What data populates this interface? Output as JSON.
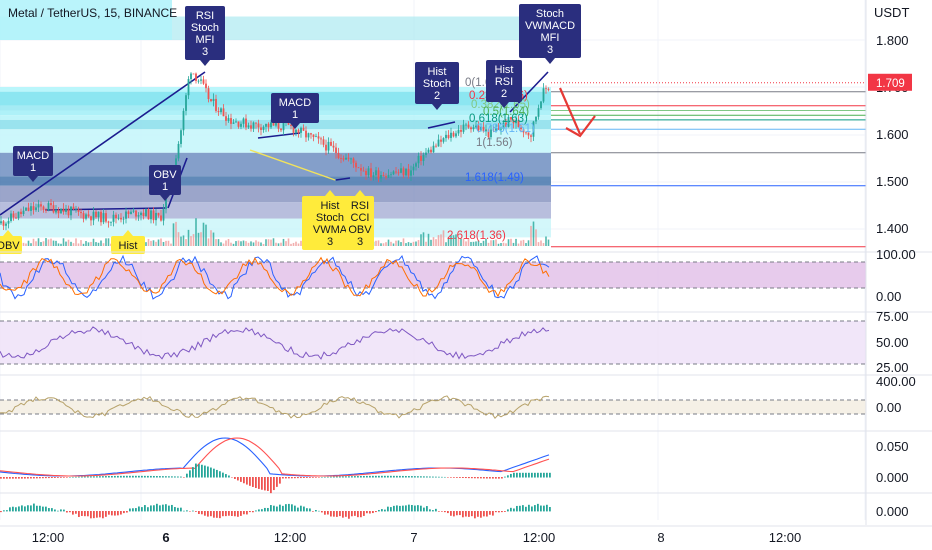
{
  "header": {
    "title": "Metal / TetherUS, 15, BINANCE"
  },
  "colors": {
    "grid": "#f0f3fa",
    "axis_text": "#131722",
    "up": "#26a69a",
    "down": "#ef5350",
    "trend": "#1c1c8f",
    "signal_buy": "#2a2e7e",
    "signal_sell": "#ffeb3b",
    "price_tag": "#f23645",
    "arrow": "#e53935"
  },
  "price_axis": {
    "unit": "USDT",
    "ticks": [
      "1.800",
      "1.700",
      "1.600",
      "1.500",
      "1.400"
    ],
    "current_price": "1.709"
  },
  "time_axis": {
    "labels": [
      "12:00",
      "6",
      "12:00",
      "7",
      "12:00",
      "8",
      "12:00"
    ],
    "bold": [
      false,
      true,
      false,
      false,
      false,
      false,
      false
    ]
  },
  "panes": {
    "stoch_ticks": [
      "100.00",
      "0.00"
    ],
    "rsi_ticks": [
      "75.00",
      "50.00",
      "25.00"
    ],
    "cci_ticks": [
      "400.00",
      "0.00"
    ],
    "macd_ticks": [
      "0.050",
      "0.000"
    ],
    "hist_ticks": [
      "0.000"
    ]
  },
  "fib_labels": [
    {
      "text": "0(1.69)",
      "color": "#787b86"
    },
    {
      "text": "0.236(1.66)",
      "color": "#f23645"
    },
    {
      "text": "0.382(1.65)",
      "color": "#81c784"
    },
    {
      "text": "0.5(1.64)",
      "color": "#4caf50"
    },
    {
      "text": "0.618(1.63)",
      "color": "#089981"
    },
    {
      "text": "0.786(1.61)",
      "color": "#64b5f6"
    },
    {
      "text": "1(1.56)",
      "color": "#787b86"
    },
    {
      "text": "1.618(1.49)",
      "color": "#2962ff"
    },
    {
      "text": "2.618(1.36)",
      "color": "#f23645"
    }
  ],
  "signals": {
    "buy": [
      {
        "lines": [
          "RSI",
          "Stoch",
          "MFI",
          "3"
        ]
      },
      {
        "lines": [
          "MACD",
          "1"
        ]
      },
      {
        "lines": [
          "OBV",
          "1"
        ]
      },
      {
        "lines": [
          "MACD",
          "1"
        ]
      },
      {
        "lines": [
          "Hist",
          "Stoch",
          "2"
        ]
      },
      {
        "lines": [
          "Hist",
          "RSI",
          "2"
        ]
      },
      {
        "lines": [
          "Stoch",
          "VWMACD",
          "MFI",
          "3"
        ]
      }
    ],
    "sell": [
      {
        "lines": [
          "OBV"
        ]
      },
      {
        "lines": [
          "Hist"
        ]
      },
      {
        "lines": [
          "Hist",
          "Stoch",
          "VWMA",
          "3"
        ]
      },
      {
        "lines": [
          "RSI",
          "CCI",
          "OBV",
          "3"
        ]
      }
    ]
  },
  "chart_data": {
    "type": "candlestick",
    "title": "Metal / TetherUS, 15, BINANCE",
    "y_unit": "USDT",
    "ylim": [
      1.36,
      1.85
    ],
    "time_range": [
      "5 12:00",
      "8 14:00"
    ],
    "current_price": 1.709,
    "price_path": [
      [
        "5 07:00",
        1.41
      ],
      [
        "5 10:00",
        1.44
      ],
      [
        "5 12:00",
        1.445
      ],
      [
        "5 15:00",
        1.43
      ],
      [
        "5 18:00",
        1.42
      ],
      [
        "5 21:00",
        1.435
      ],
      [
        "5 23:00",
        1.42
      ],
      [
        "6 00:00",
        1.5
      ],
      [
        "6 01:00",
        1.6
      ],
      [
        "6 02:00",
        1.74
      ],
      [
        "6 03:00",
        1.71
      ],
      [
        "6 04:00",
        1.67
      ],
      [
        "6 06:00",
        1.63
      ],
      [
        "6 08:00",
        1.62
      ],
      [
        "6 12:00",
        1.615
      ],
      [
        "6 16:00",
        1.57
      ],
      [
        "6 20:00",
        1.515
      ],
      [
        "7 00:00",
        1.52
      ],
      [
        "7 01:00",
        1.55
      ],
      [
        "7 04:00",
        1.6
      ],
      [
        "7 06:00",
        1.62
      ],
      [
        "7 08:00",
        1.6
      ],
      [
        "7 10:00",
        1.63
      ],
      [
        "7 12:00",
        1.6
      ],
      [
        "7 13:00",
        1.68
      ],
      [
        "7 14:00",
        1.709
      ]
    ],
    "fib_levels": [
      {
        "ratio": 0,
        "price": 1.69
      },
      {
        "ratio": 0.236,
        "price": 1.66
      },
      {
        "ratio": 0.382,
        "price": 1.65
      },
      {
        "ratio": 0.5,
        "price": 1.64
      },
      {
        "ratio": 0.618,
        "price": 1.63
      },
      {
        "ratio": 0.786,
        "price": 1.61
      },
      {
        "ratio": 1,
        "price": 1.56
      },
      {
        "ratio": 1.618,
        "price": 1.49
      },
      {
        "ratio": 2.618,
        "price": 1.36
      }
    ],
    "indicators": [
      "Stoch",
      "RSI",
      "CCI",
      "MACD",
      "Histogram"
    ],
    "grid": true
  }
}
